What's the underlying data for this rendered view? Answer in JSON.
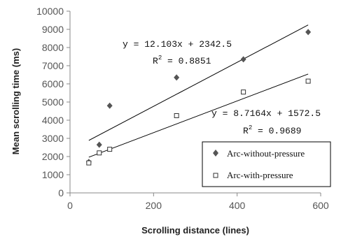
{
  "chart_data": {
    "type": "scatter",
    "xlabel": "Scrolling distance (lines)",
    "ylabel": "Mean scrolling time (ms)",
    "xlim": [
      0,
      600
    ],
    "ylim": [
      0,
      10000
    ],
    "xticks": [
      0,
      200,
      400,
      600
    ],
    "yticks": [
      0,
      1000,
      2000,
      3000,
      4000,
      5000,
      6000,
      7000,
      8000,
      9000,
      10000
    ],
    "grid": false,
    "legend_position": "bottom-right",
    "series": [
      {
        "name": "Arc-without-pressure",
        "marker": "diamond",
        "color": "#555555",
        "x": [
          45,
          70,
          95,
          255,
          415,
          570
        ],
        "y": [
          1700,
          2650,
          4800,
          6350,
          7350,
          8850
        ],
        "trendline": {
          "slope": 12.103,
          "intercept": 2342.5,
          "x_range": [
            45,
            570
          ],
          "equation": "y = 12.103x + 2342.5",
          "r2_label": "R",
          "r2_sup": "2",
          "r2_value": " = 0.8851"
        }
      },
      {
        "name": "Arc-with-pressure",
        "marker": "square",
        "color": "#333333",
        "x": [
          45,
          70,
          95,
          255,
          415,
          570
        ],
        "y": [
          1650,
          2200,
          2400,
          4250,
          5550,
          6150
        ],
        "trendline": {
          "slope": 8.7164,
          "intercept": 1572.5,
          "x_range": [
            45,
            570
          ],
          "equation": "y = 8.7164x + 1572.5",
          "r2_label": "R",
          "r2_sup": "2",
          "r2_value": " = 0.9689"
        }
      }
    ]
  }
}
